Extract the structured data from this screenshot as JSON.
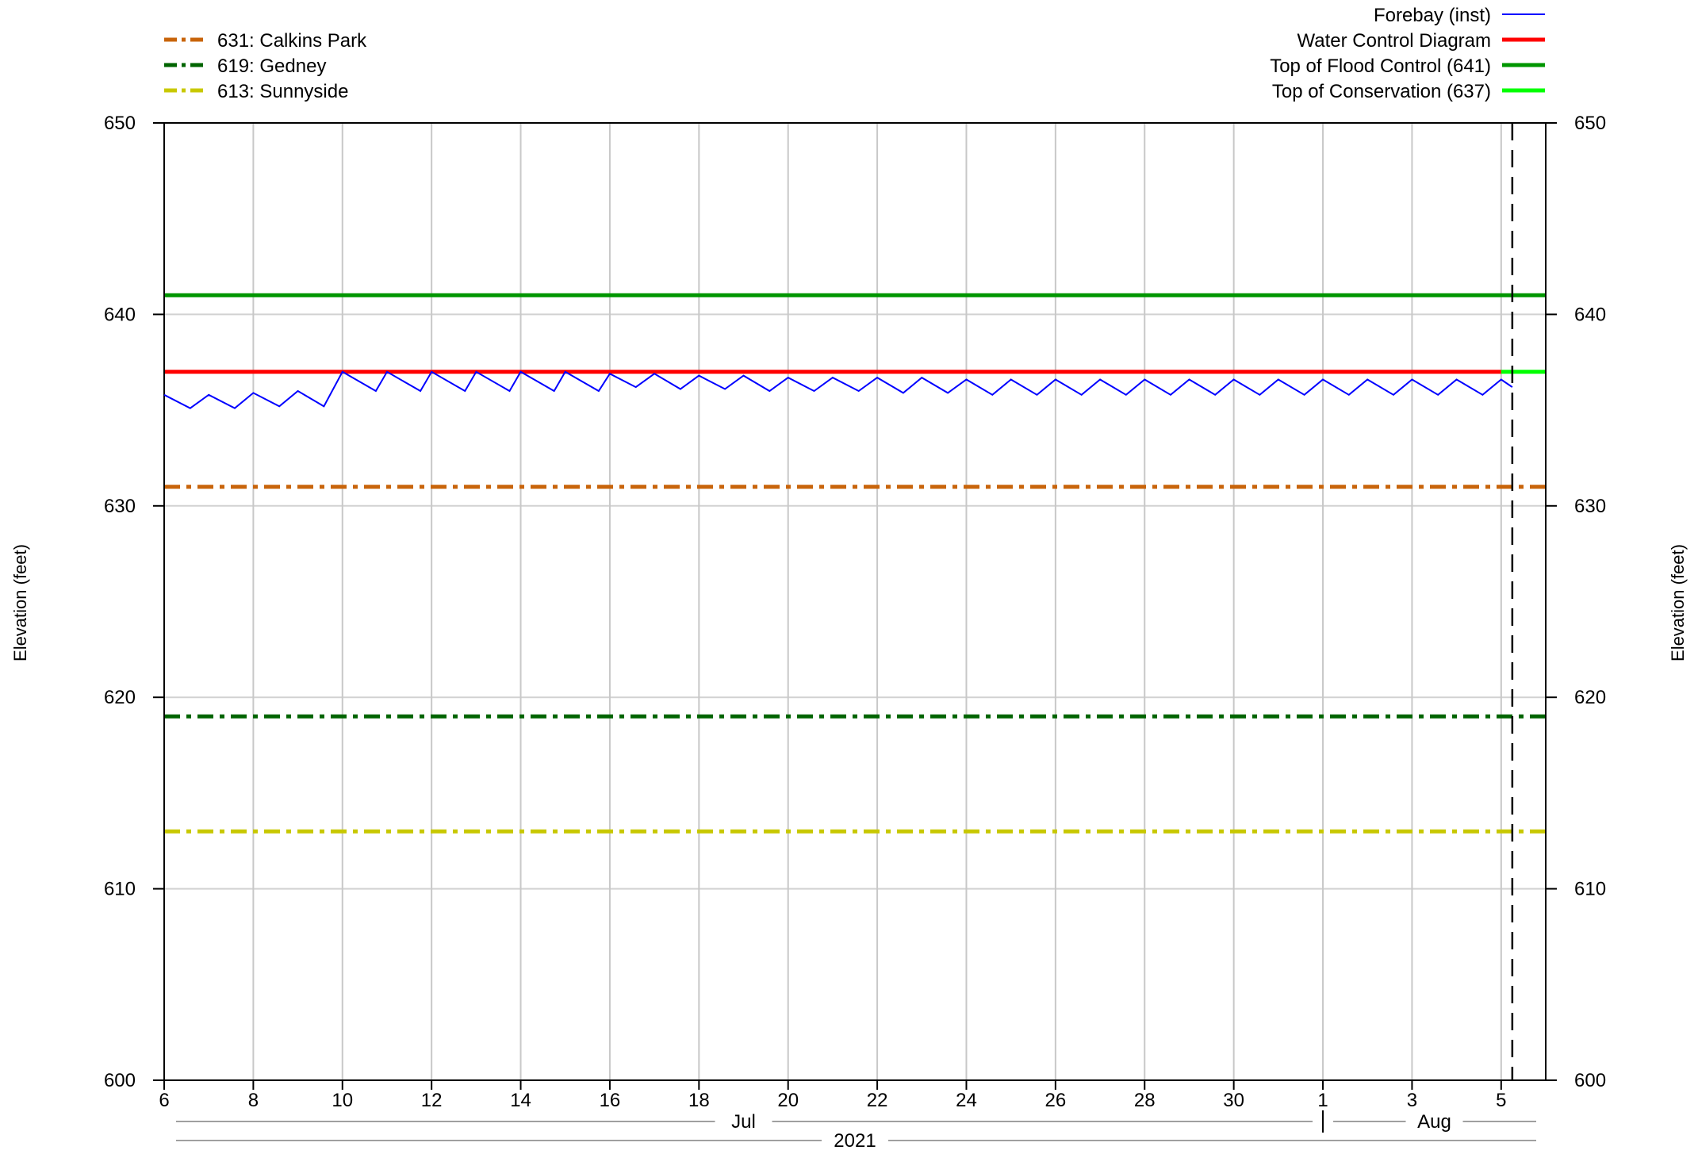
{
  "chart_data": {
    "type": "line",
    "title": "",
    "ylabel_left": "Elevation (feet)",
    "ylabel_right": "Elevation (feet)",
    "ylim": [
      600,
      650
    ],
    "y_ticks": [
      600,
      610,
      620,
      630,
      640,
      650
    ],
    "y_tick_labels": [
      "600",
      "610",
      "620",
      "630",
      "640",
      "650"
    ],
    "xlim": [
      "2021-07-06",
      "2021-08-06"
    ],
    "x_ticks": [
      "2021-07-06",
      "2021-07-08",
      "2021-07-10",
      "2021-07-12",
      "2021-07-14",
      "2021-07-16",
      "2021-07-18",
      "2021-07-20",
      "2021-07-22",
      "2021-07-24",
      "2021-07-26",
      "2021-07-28",
      "2021-07-30",
      "2021-08-01",
      "2021-08-03",
      "2021-08-05"
    ],
    "x_tick_labels": [
      "6",
      "8",
      "10",
      "12",
      "14",
      "16",
      "18",
      "20",
      "22",
      "24",
      "26",
      "28",
      "30",
      "1",
      "3",
      "5"
    ],
    "months": [
      {
        "label": "Jul",
        "start": "2021-07-06",
        "end": "2021-08-01"
      },
      {
        "label": "Aug",
        "start": "2021-08-01",
        "end": "2021-08-06"
      }
    ],
    "year_label": "2021",
    "current_time": "2021-08-05T06:00",
    "grid": true,
    "legend_left": [
      {
        "label": "631: Calkins Park",
        "color": "#c8640a",
        "style": "dash-dot"
      },
      {
        "label": "619: Gedney",
        "color": "#006400",
        "style": "dash-dot"
      },
      {
        "label": "613: Sunnyside",
        "color": "#c8c800",
        "style": "dash-dot"
      }
    ],
    "legend_right": [
      {
        "label": "Forebay (inst)",
        "color": "#0000ff",
        "style": "thin"
      },
      {
        "label": "Water Control Diagram",
        "color": "#ff0000",
        "style": "solid"
      },
      {
        "label": "Top of Flood Control (641)",
        "color": "#009600",
        "style": "solid"
      },
      {
        "label": "Top of Conservation (637)",
        "color": "#00ff00",
        "style": "solid"
      }
    ],
    "series": [
      {
        "name": "Forebay (inst)",
        "color": "#0000ff",
        "points": [
          [
            "2021-07-06T00:00",
            635.8
          ],
          [
            "2021-07-06T14:00",
            635.1
          ],
          [
            "2021-07-07T00:00",
            635.8
          ],
          [
            "2021-07-07T14:00",
            635.1
          ],
          [
            "2021-07-08T00:00",
            635.9
          ],
          [
            "2021-07-08T14:00",
            635.2
          ],
          [
            "2021-07-09T00:00",
            636.0
          ],
          [
            "2021-07-09T14:00",
            635.2
          ],
          [
            "2021-07-10T00:00",
            637.0
          ],
          [
            "2021-07-10T18:00",
            636.0
          ],
          [
            "2021-07-11T00:00",
            637.0
          ],
          [
            "2021-07-11T18:00",
            636.0
          ],
          [
            "2021-07-12T00:00",
            637.0
          ],
          [
            "2021-07-12T18:00",
            636.0
          ],
          [
            "2021-07-13T00:00",
            637.0
          ],
          [
            "2021-07-13T18:00",
            636.0
          ],
          [
            "2021-07-14T00:00",
            637.0
          ],
          [
            "2021-07-14T18:00",
            636.0
          ],
          [
            "2021-07-15T00:00",
            637.0
          ],
          [
            "2021-07-15T18:00",
            636.0
          ],
          [
            "2021-07-16T00:00",
            636.9
          ],
          [
            "2021-07-16T14:00",
            636.2
          ],
          [
            "2021-07-17T00:00",
            636.9
          ],
          [
            "2021-07-17T14:00",
            636.1
          ],
          [
            "2021-07-18T00:00",
            636.8
          ],
          [
            "2021-07-18T14:00",
            636.1
          ],
          [
            "2021-07-19T00:00",
            636.8
          ],
          [
            "2021-07-19T14:00",
            636.0
          ],
          [
            "2021-07-20T00:00",
            636.7
          ],
          [
            "2021-07-20T14:00",
            636.0
          ],
          [
            "2021-07-21T00:00",
            636.7
          ],
          [
            "2021-07-21T14:00",
            636.0
          ],
          [
            "2021-07-22T00:00",
            636.7
          ],
          [
            "2021-07-22T14:00",
            635.9
          ],
          [
            "2021-07-23T00:00",
            636.7
          ],
          [
            "2021-07-23T14:00",
            635.9
          ],
          [
            "2021-07-24T00:00",
            636.6
          ],
          [
            "2021-07-24T14:00",
            635.8
          ],
          [
            "2021-07-25T00:00",
            636.6
          ],
          [
            "2021-07-25T14:00",
            635.8
          ],
          [
            "2021-07-26T00:00",
            636.6
          ],
          [
            "2021-07-26T14:00",
            635.8
          ],
          [
            "2021-07-27T00:00",
            636.6
          ],
          [
            "2021-07-27T14:00",
            635.8
          ],
          [
            "2021-07-28T00:00",
            636.6
          ],
          [
            "2021-07-28T14:00",
            635.8
          ],
          [
            "2021-07-29T00:00",
            636.6
          ],
          [
            "2021-07-29T14:00",
            635.8
          ],
          [
            "2021-07-30T00:00",
            636.6
          ],
          [
            "2021-07-30T14:00",
            635.8
          ],
          [
            "2021-07-31T00:00",
            636.6
          ],
          [
            "2021-07-31T14:00",
            635.8
          ],
          [
            "2021-08-01T00:00",
            636.6
          ],
          [
            "2021-08-01T14:00",
            635.8
          ],
          [
            "2021-08-02T00:00",
            636.6
          ],
          [
            "2021-08-02T14:00",
            635.8
          ],
          [
            "2021-08-03T00:00",
            636.6
          ],
          [
            "2021-08-03T14:00",
            635.8
          ],
          [
            "2021-08-04T00:00",
            636.6
          ],
          [
            "2021-08-04T14:00",
            635.8
          ],
          [
            "2021-08-05T00:00",
            636.6
          ],
          [
            "2021-08-05T06:00",
            636.2
          ]
        ]
      },
      {
        "name": "Water Control Diagram",
        "color": "#ff0000",
        "points": [
          [
            "2021-07-06T00:00",
            637
          ],
          [
            "2021-08-05T00:00",
            637
          ]
        ]
      },
      {
        "name": "Top of Conservation (637)",
        "color": "#00ff00",
        "points": [
          [
            "2021-08-05T00:00",
            637
          ],
          [
            "2021-08-06T00:00",
            637
          ]
        ]
      },
      {
        "name": "Top of Flood Control (641)",
        "color": "#009600",
        "points": [
          [
            "2021-07-06T00:00",
            641
          ],
          [
            "2021-08-06T00:00",
            641
          ]
        ]
      },
      {
        "name": "631: Calkins Park",
        "color": "#c8640a",
        "points": [
          [
            "2021-07-06T00:00",
            631
          ],
          [
            "2021-08-06T00:00",
            631
          ]
        ]
      },
      {
        "name": "619: Gedney",
        "color": "#006400",
        "points": [
          [
            "2021-07-06T00:00",
            619
          ],
          [
            "2021-08-06T00:00",
            619
          ]
        ]
      },
      {
        "name": "613: Sunnyside",
        "color": "#c8c800",
        "points": [
          [
            "2021-07-06T00:00",
            613
          ],
          [
            "2021-08-06T00:00",
            613
          ]
        ]
      }
    ]
  }
}
